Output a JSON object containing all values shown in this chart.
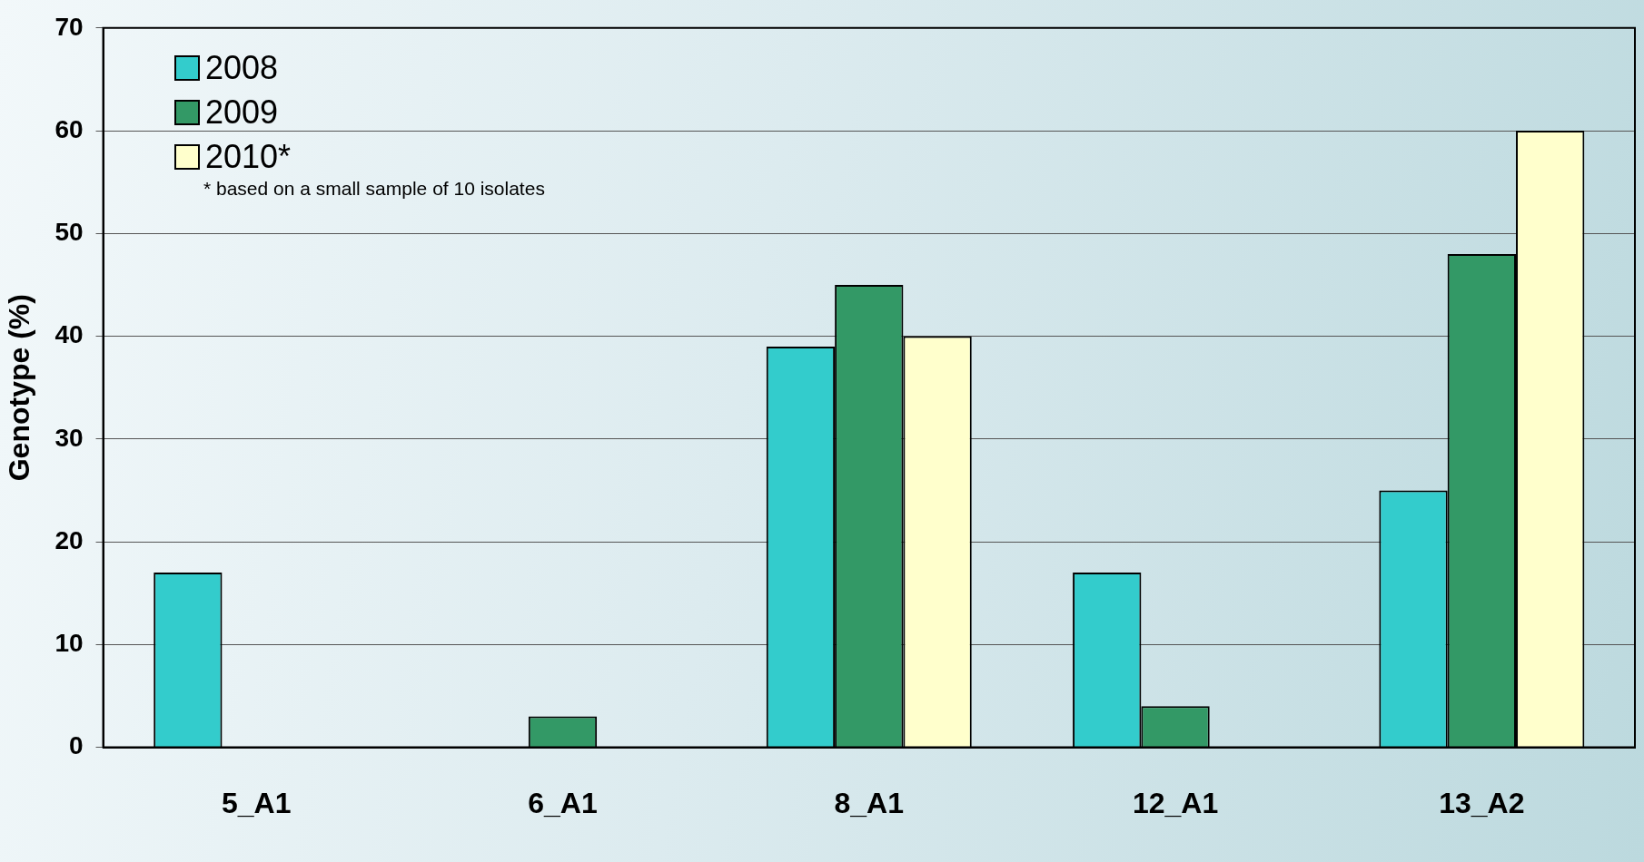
{
  "chart_data": {
    "type": "bar",
    "ylabel": "Genotype (%)",
    "categories": [
      "5_A1",
      "6_A1",
      "8_A1",
      "12_A1",
      "13_A2"
    ],
    "series": [
      {
        "name": "2008",
        "color": "#33cccc",
        "values": [
          17,
          0,
          39,
          17,
          25
        ]
      },
      {
        "name": "2009",
        "color": "#339966",
        "values": [
          0,
          3,
          45,
          4,
          48
        ]
      },
      {
        "name": "2010*",
        "color": "#ffffcc",
        "values": [
          0,
          0,
          40,
          0,
          60
        ]
      }
    ],
    "ylim": [
      0,
      70
    ],
    "yticks": [
      0,
      10,
      20,
      30,
      40,
      50,
      60,
      70
    ],
    "grid": "y",
    "legend": "top left",
    "annotations": [
      "* based on a small sample of 10 isolates"
    ]
  }
}
